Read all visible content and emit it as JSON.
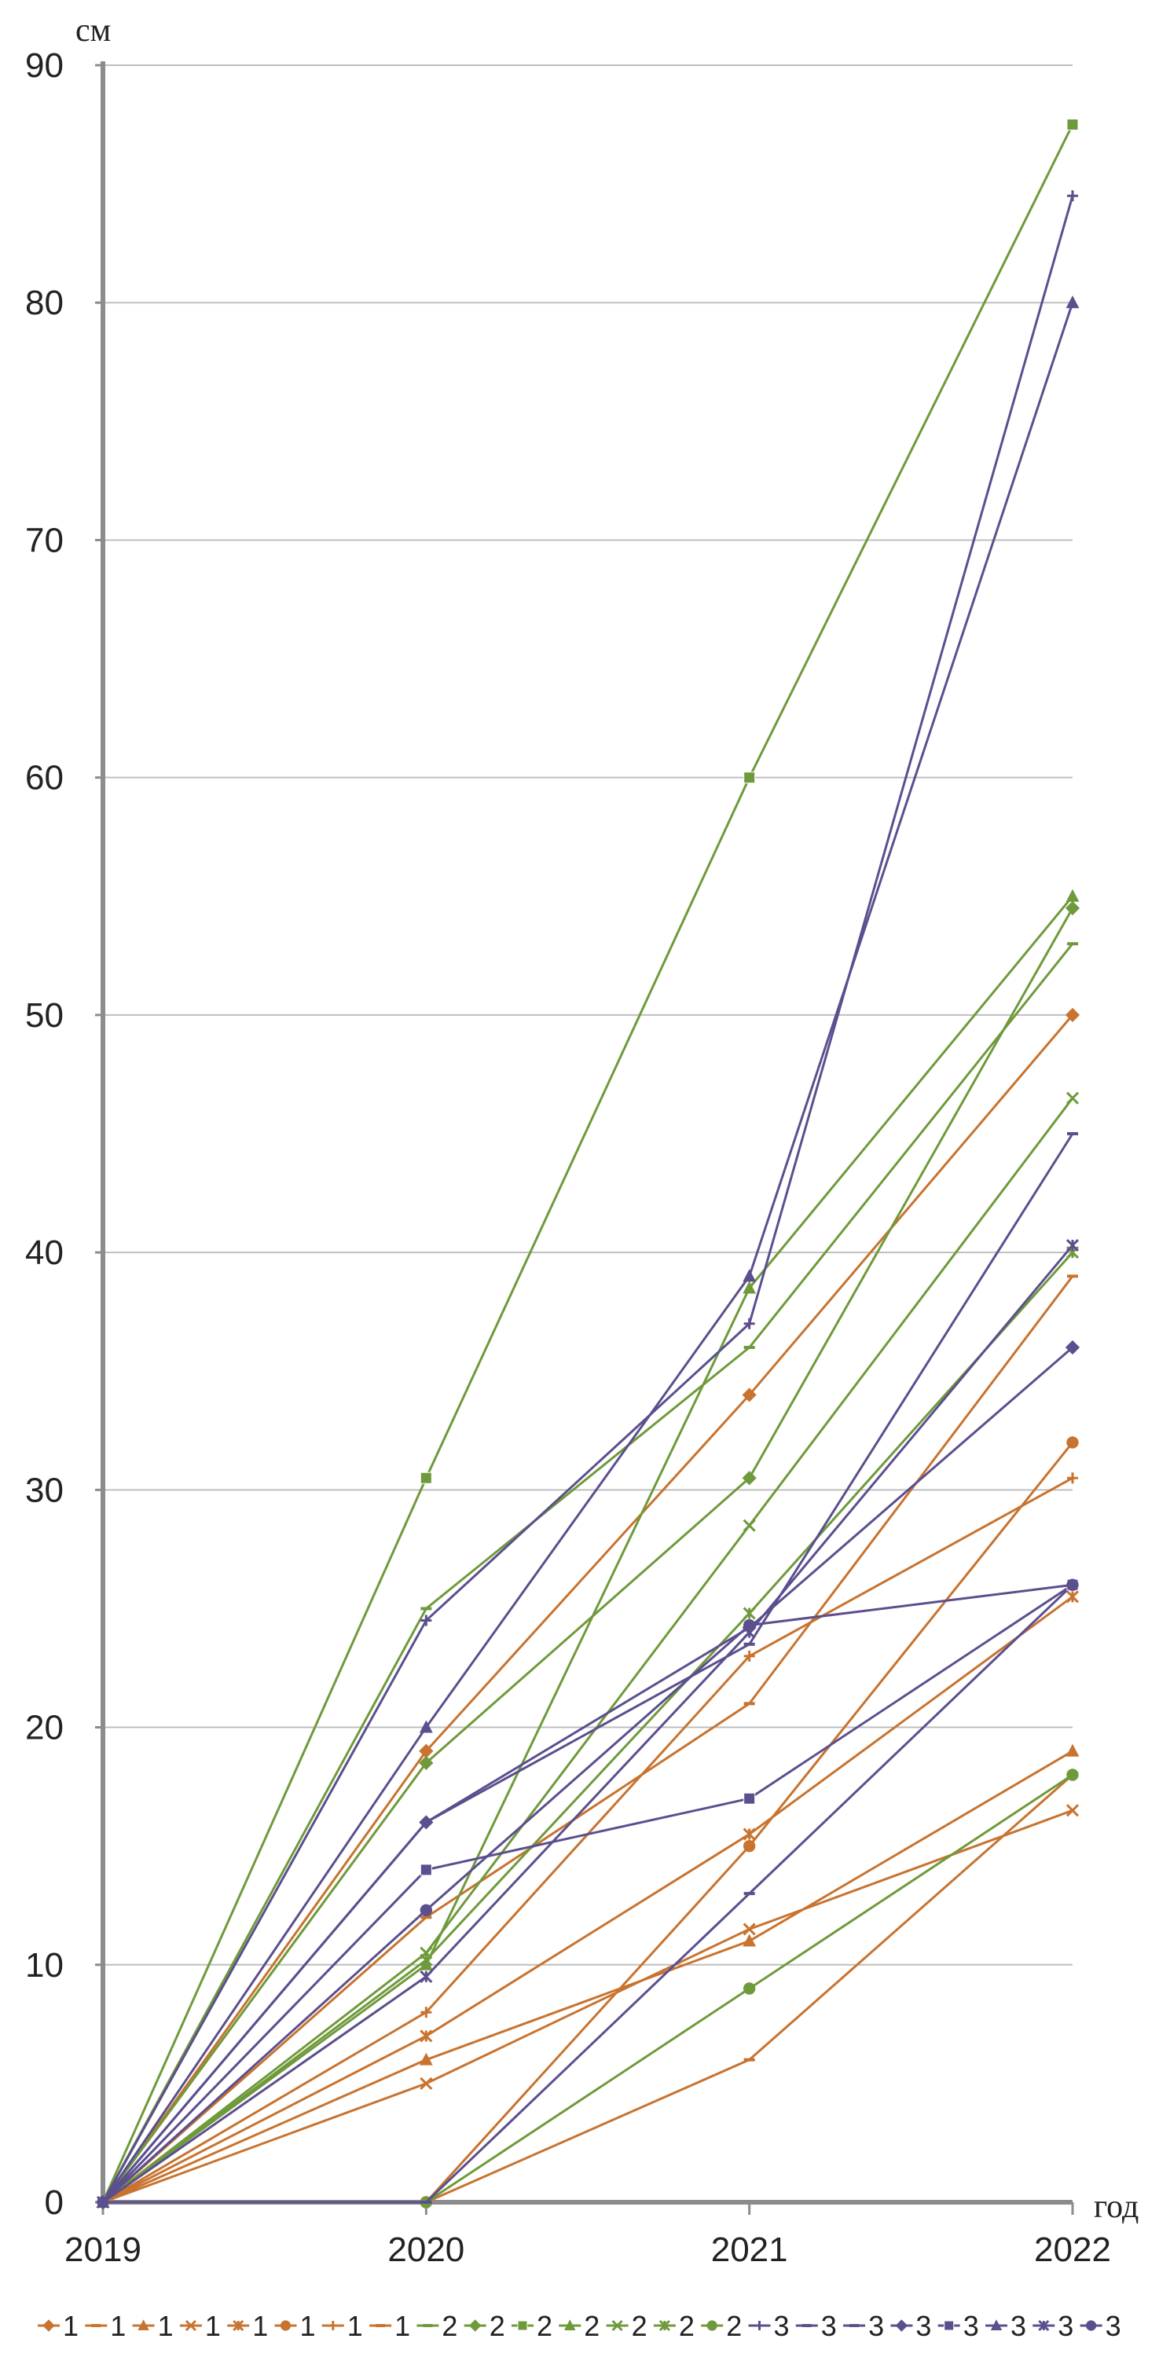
{
  "chart_data": {
    "type": "line",
    "title": "",
    "ylabel": "см",
    "xlabel": "год",
    "x": [
      "2019",
      "2020",
      "2021",
      "2022"
    ],
    "ylim": [
      0,
      90
    ],
    "yticks": [
      0,
      10,
      20,
      30,
      40,
      50,
      60,
      70,
      80,
      90
    ],
    "grid": true,
    "legend_position": "bottom",
    "colors": {
      "1": "#c8732f",
      "2": "#6f9a3b",
      "3": "#5b4f8e",
      "axis": "#8c8c8c",
      "grid": "#bfbfbf"
    },
    "series": [
      {
        "name": "1",
        "group": "1",
        "marker": "diamond",
        "values": [
          0,
          19,
          34,
          50
        ]
      },
      {
        "name": "1",
        "group": "1",
        "marker": "dash",
        "values": [
          0,
          12,
          21,
          39
        ]
      },
      {
        "name": "1",
        "group": "1",
        "marker": "triangle",
        "values": [
          0,
          6,
          11,
          19
        ]
      },
      {
        "name": "1",
        "group": "1",
        "marker": "x",
        "values": [
          0,
          5,
          11.5,
          16.5
        ]
      },
      {
        "name": "1",
        "group": "1",
        "marker": "star",
        "values": [
          0,
          7,
          15.5,
          25.5
        ]
      },
      {
        "name": "1",
        "group": "1",
        "marker": "circle",
        "values": [
          0,
          0,
          15,
          32
        ]
      },
      {
        "name": "1",
        "group": "1",
        "marker": "plus",
        "values": [
          0,
          8,
          23,
          30.5
        ]
      },
      {
        "name": "1",
        "group": "1",
        "marker": "dash",
        "values": [
          0,
          0,
          6,
          18
        ]
      },
      {
        "name": "2",
        "group": "2",
        "marker": "dash",
        "values": [
          0,
          25,
          36,
          53
        ]
      },
      {
        "name": "2",
        "group": "2",
        "marker": "diamond",
        "values": [
          0,
          18.5,
          30.5,
          54.5
        ]
      },
      {
        "name": "2",
        "group": "2",
        "marker": "square",
        "values": [
          0,
          30.5,
          60,
          87.5
        ]
      },
      {
        "name": "2",
        "group": "2",
        "marker": "triangle",
        "values": [
          0,
          10,
          38.5,
          55
        ]
      },
      {
        "name": "2",
        "group": "2",
        "marker": "x",
        "values": [
          0,
          10.5,
          28.5,
          46.5
        ]
      },
      {
        "name": "2",
        "group": "2",
        "marker": "star",
        "values": [
          0,
          10.2,
          24.8,
          40
        ]
      },
      {
        "name": "2",
        "group": "2",
        "marker": "circle",
        "values": [
          0,
          0,
          9,
          18
        ]
      },
      {
        "name": "3",
        "group": "3",
        "marker": "plus",
        "values": [
          0,
          24.5,
          37,
          84.5
        ]
      },
      {
        "name": "3",
        "group": "3",
        "marker": "dash",
        "values": [
          0,
          16,
          23.5,
          45
        ]
      },
      {
        "name": "3",
        "group": "3",
        "marker": "dash",
        "values": [
          0,
          0,
          13,
          26
        ]
      },
      {
        "name": "3",
        "group": "3",
        "marker": "diamond",
        "values": [
          0,
          16,
          24.2,
          36
        ]
      },
      {
        "name": "3",
        "group": "3",
        "marker": "square",
        "values": [
          0,
          14,
          17,
          26
        ]
      },
      {
        "name": "3",
        "group": "3",
        "marker": "triangle",
        "values": [
          0,
          20,
          39,
          80
        ]
      },
      {
        "name": "3",
        "group": "3",
        "marker": "star",
        "values": [
          0,
          9.5,
          24,
          40.3
        ]
      },
      {
        "name": "3",
        "group": "3",
        "marker": "circle",
        "values": [
          0,
          12.3,
          24.3,
          26
        ]
      }
    ]
  }
}
